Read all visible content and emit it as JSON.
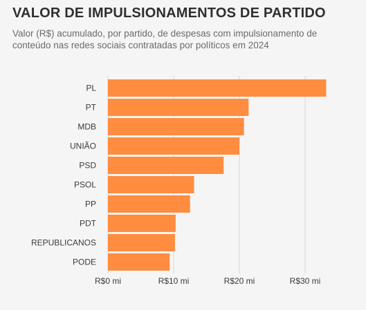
{
  "chart_data": {
    "type": "bar",
    "orientation": "horizontal",
    "title": "VALOR DE IMPULSIONAMENTOS DE PARTIDO",
    "subtitle": "Valor (R$) acumulado, por partido, de despesas com impulsionamento de conteúdo nas redes sociais contratadas por políticos em 2024",
    "categories": [
      "PL",
      "PT",
      "MDB",
      "UNIÃO",
      "PSD",
      "PSOL",
      "PP",
      "PDT",
      "REPUBLICANOS",
      "PODE"
    ],
    "values": [
      33.2,
      21.4,
      20.7,
      20.0,
      17.6,
      13.1,
      12.5,
      10.3,
      10.2,
      9.4
    ],
    "unit": "R$ milhões",
    "xlim": [
      0,
      35
    ],
    "xticks": [
      0,
      10,
      20,
      30
    ],
    "xtick_labels": [
      "R$0 mi",
      "R$10 mi",
      "R$20 mi",
      "R$30 mi"
    ],
    "xlabel": "",
    "ylabel": "",
    "grid": true,
    "legend": "none",
    "bar_color": "#ff8c3f",
    "grid_color": "#d6d6d6"
  }
}
